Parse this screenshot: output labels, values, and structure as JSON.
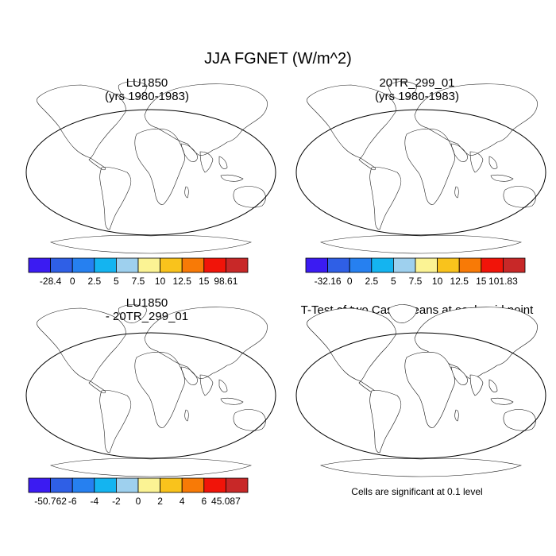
{
  "title": "JJA FGNET (W/m^2)",
  "panels": [
    {
      "title_lines": [
        "LU1850",
        "(yrs 1980-1983)"
      ]
    },
    {
      "title_lines": [
        "20TR_299_01",
        "(yrs 1980-1983)"
      ]
    },
    {
      "title_lines": [
        "LU1850",
        "- 20TR_299_01"
      ]
    },
    {
      "title_lines": [
        "T-Test of two Case means at each grid point"
      ]
    }
  ],
  "note": "Cells are significant at 0.1 level",
  "colors": {
    "cold": "#3b1bf2",
    "land_blue": "#2f5fe6",
    "cyan": "#14b4f0",
    "light_blue": "#9ed0ee",
    "pale_yellow": "#fbf394",
    "yellow": "#f9c31c",
    "orange": "#f87a06",
    "red": "#f11409",
    "dark_red": "#c82828",
    "sig_red": "#e01010"
  },
  "chart_data": [
    {
      "type": "heatmap",
      "title": "LU1850 (yrs 1980-1983)",
      "colorbar": {
        "labels": [
          "-28.4",
          "0",
          "2.5",
          "5",
          "7.5",
          "10",
          "12.5",
          "15",
          "98.61"
        ],
        "levels": [
          -28.4,
          0,
          2.5,
          5,
          7.5,
          10,
          12.5,
          15,
          98.61
        ],
        "min": -28.4,
        "max": 98.61,
        "colors": [
          "#3b1bf2",
          "#2f5fe6",
          "#2680f0",
          "#14b4f0",
          "#9ed0ee",
          "#fbf394",
          "#f9c31c",
          "#f87a06",
          "#f11409",
          "#c82828"
        ]
      }
    },
    {
      "type": "heatmap",
      "title": "20TR_299_01 (yrs 1980-1983)",
      "colorbar": {
        "labels": [
          "-32.16",
          "0",
          "2.5",
          "5",
          "7.5",
          "10",
          "12.5",
          "15",
          "101.83"
        ],
        "levels": [
          -32.16,
          0,
          2.5,
          5,
          7.5,
          10,
          12.5,
          15,
          101.83
        ],
        "min": -32.16,
        "max": 101.83,
        "colors": [
          "#3b1bf2",
          "#2f5fe6",
          "#2680f0",
          "#14b4f0",
          "#9ed0ee",
          "#fbf394",
          "#f9c31c",
          "#f87a06",
          "#f11409",
          "#c82828"
        ]
      }
    },
    {
      "type": "heatmap",
      "title": "LU1850 - 20TR_299_01",
      "colorbar": {
        "labels": [
          "-50.762",
          "-6",
          "-4",
          "-2",
          "0",
          "2",
          "4",
          "6",
          "45.087"
        ],
        "levels": [
          -50.762,
          -6,
          -4,
          -2,
          0,
          2,
          4,
          6,
          45.087
        ],
        "min": -50.762,
        "max": 45.087,
        "colors": [
          "#3b1bf2",
          "#2f5fe6",
          "#2680f0",
          "#14b4f0",
          "#9ed0ee",
          "#fbf394",
          "#f9c31c",
          "#f87a06",
          "#f11409",
          "#c82828"
        ]
      }
    },
    {
      "type": "heatmap",
      "title": "T-Test of two Case means at each grid point",
      "significance_level": 0.1
    }
  ]
}
